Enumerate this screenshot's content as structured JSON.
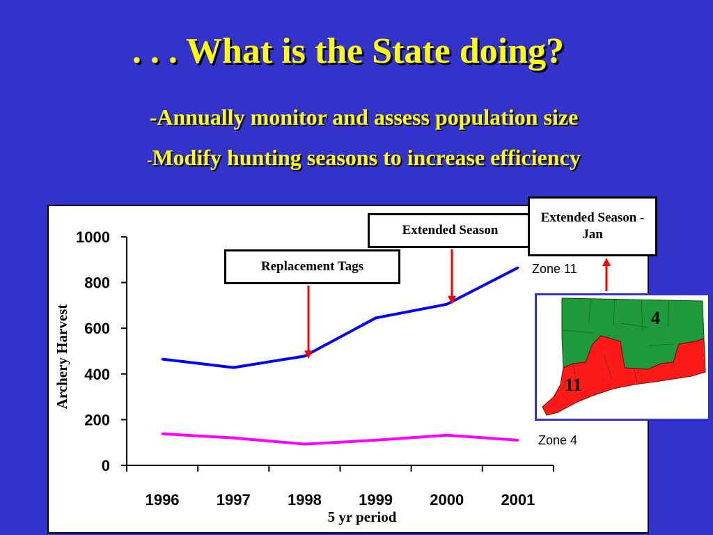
{
  "slide": {
    "title": ". . . What is the State doing?",
    "bullets": [
      {
        "prefix": "-",
        "text": "Annually monitor and assess population size"
      },
      {
        "prefix": "-",
        "text": "Modify hunting seasons to increase efficiency"
      }
    ]
  },
  "annotations": {
    "replacement_tags": "Replacement Tags",
    "extended_season": "Extended Season",
    "extended_season_jan": "Extended Season - Jan"
  },
  "map": {
    "zone_north_label": "4",
    "zone_south_label": "11",
    "colors": {
      "zone4": "#1f9a3a",
      "zone11": "#ff1a1a"
    }
  },
  "chart_data": {
    "type": "line",
    "categories": [
      "1996",
      "1997",
      "1998",
      "1999",
      "2000",
      "2001"
    ],
    "series": [
      {
        "name": "Zone 11",
        "values": [
          465,
          428,
          478,
          645,
          705,
          865
        ],
        "color": "#0000ff"
      },
      {
        "name": "Zone 4",
        "values": [
          138,
          120,
          93,
          110,
          132,
          110
        ],
        "color": "#ff00ff"
      }
    ],
    "xlabel": "5 yr period",
    "ylabel": "Archery Harvest",
    "ylim": [
      0,
      1000
    ],
    "yticks": [
      "0",
      "200",
      "400",
      "600",
      "800",
      "1000"
    ],
    "grid": false,
    "legend": "labels at line ends (right)"
  }
}
